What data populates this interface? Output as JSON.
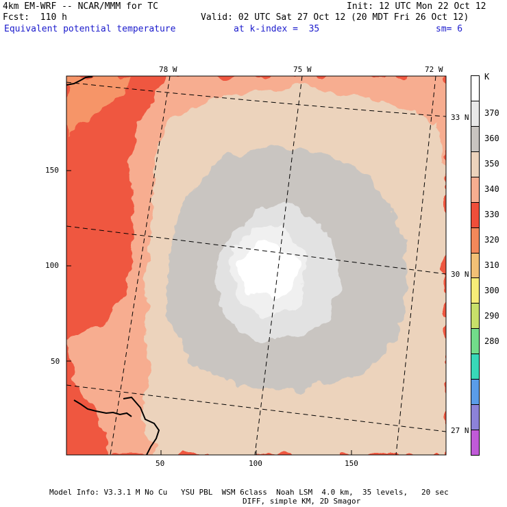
{
  "header": {
    "model": "4km EM-WRF -- NCAR/MMM for TC",
    "init": "Init: 12 UTC Mon 22 Oct 12",
    "fcst": "Fcst:  110 h",
    "valid": "Valid: 02 UTC Sat 27 Oct 12 (20 MDT Fri 26 Oct 12)",
    "field": "Equivalent potential temperature",
    "level": "at k-index =  35",
    "smoothing": "sm= 6"
  },
  "map": {
    "lon_labels": [
      "78 W",
      "75 W",
      "72 W"
    ],
    "lat_labels": [
      "33 N",
      "30 N",
      "27 N"
    ],
    "x_ticks": [
      "50",
      "100",
      "150"
    ],
    "y_ticks": [
      "150",
      "100",
      "50"
    ]
  },
  "colorbar": {
    "unit": "K",
    "levels": [
      "370",
      "360",
      "350",
      "340",
      "330",
      "320",
      "310",
      "300",
      "290",
      "280"
    ],
    "colors": [
      "#ffffff",
      "#e8e8e8",
      "#c8c4c0",
      "#ecd3bc",
      "#f7ad90",
      "#ef4e3a",
      "#f3885a",
      "#f2c076",
      "#f7ec78",
      "#c8e06a",
      "#72dc8a",
      "#38d8b8",
      "#5a9ce8",
      "#8c82d8",
      "#c05ad8"
    ]
  },
  "footer": {
    "line1": "Model Info: V3.3.1 M No Cu   YSU PBL  WSM 6class  Noah LSM  4.0 km,  35 levels,   20 sec",
    "line2": "DIFF, simple KM, 2D Smagor"
  }
}
